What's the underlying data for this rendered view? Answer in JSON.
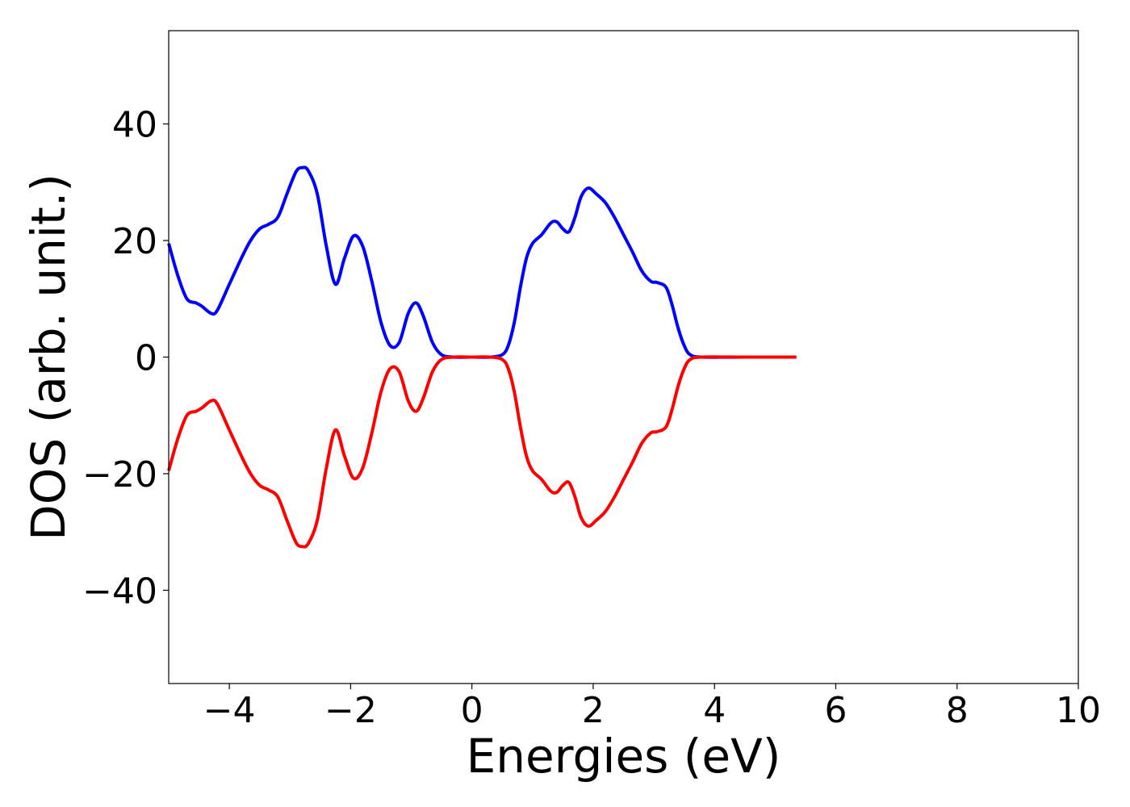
{
  "chart_data": {
    "type": "line",
    "title": "",
    "xlabel": "Energies (eV)",
    "ylabel": "DOS (arb. unit.)",
    "xlim": [
      -5,
      10
    ],
    "ylim": [
      -56,
      56
    ],
    "xticks": [
      -4,
      -2,
      0,
      2,
      4,
      6,
      8,
      10
    ],
    "xtick_labels": [
      "−4",
      "−2",
      "0",
      "2",
      "4",
      "6",
      "8",
      "10"
    ],
    "yticks": [
      -40,
      -20,
      0,
      20,
      40
    ],
    "ytick_labels": [
      "−40",
      "−20",
      "0",
      "20",
      "40"
    ],
    "grid": false,
    "legend": false,
    "series": [
      {
        "color": "#0000ff",
        "points": [
          [
            -5.0,
            19.5
          ],
          [
            -4.85,
            14.0
          ],
          [
            -4.7,
            10.0
          ],
          [
            -4.55,
            9.3
          ],
          [
            -4.45,
            8.7
          ],
          [
            -4.3,
            7.5
          ],
          [
            -4.2,
            8.0
          ],
          [
            -4.0,
            12.5
          ],
          [
            -3.8,
            17.0
          ],
          [
            -3.65,
            20.0
          ],
          [
            -3.5,
            22.0
          ],
          [
            -3.35,
            22.8
          ],
          [
            -3.2,
            24.0
          ],
          [
            -3.05,
            28.0
          ],
          [
            -2.9,
            31.8
          ],
          [
            -2.8,
            32.5
          ],
          [
            -2.7,
            32.0
          ],
          [
            -2.55,
            28.0
          ],
          [
            -2.4,
            19.0
          ],
          [
            -2.25,
            12.5
          ],
          [
            -2.1,
            17.0
          ],
          [
            -1.95,
            20.8
          ],
          [
            -1.8,
            19.0
          ],
          [
            -1.65,
            13.0
          ],
          [
            -1.5,
            6.0
          ],
          [
            -1.35,
            2.0
          ],
          [
            -1.2,
            2.5
          ],
          [
            -1.05,
            7.5
          ],
          [
            -0.92,
            9.3
          ],
          [
            -0.8,
            7.0
          ],
          [
            -0.65,
            2.5
          ],
          [
            -0.5,
            0.4
          ],
          [
            -0.3,
            0.0
          ],
          [
            0.0,
            0.0
          ],
          [
            0.3,
            0.0
          ],
          [
            0.5,
            0.4
          ],
          [
            0.6,
            2.0
          ],
          [
            0.7,
            6.0
          ],
          [
            0.8,
            12.0
          ],
          [
            0.9,
            17.0
          ],
          [
            1.0,
            19.5
          ],
          [
            1.15,
            21.0
          ],
          [
            1.3,
            23.0
          ],
          [
            1.4,
            23.2
          ],
          [
            1.5,
            22.0
          ],
          [
            1.6,
            21.5
          ],
          [
            1.7,
            24.0
          ],
          [
            1.8,
            27.5
          ],
          [
            1.92,
            29.0
          ],
          [
            2.05,
            28.0
          ],
          [
            2.2,
            26.5
          ],
          [
            2.35,
            24.0
          ],
          [
            2.5,
            21.0
          ],
          [
            2.65,
            18.0
          ],
          [
            2.8,
            14.8
          ],
          [
            2.95,
            13.0
          ],
          [
            3.05,
            12.8
          ],
          [
            3.2,
            12.0
          ],
          [
            3.3,
            9.0
          ],
          [
            3.4,
            5.0
          ],
          [
            3.5,
            2.0
          ],
          [
            3.6,
            0.4
          ],
          [
            3.8,
            0.0
          ],
          [
            4.5,
            0.0
          ],
          [
            5.35,
            0.0
          ]
        ]
      },
      {
        "color": "#ff0000",
        "points": [
          [
            -5.0,
            -19.5
          ],
          [
            -4.85,
            -14.0
          ],
          [
            -4.7,
            -10.0
          ],
          [
            -4.55,
            -9.3
          ],
          [
            -4.45,
            -8.7
          ],
          [
            -4.3,
            -7.5
          ],
          [
            -4.2,
            -8.0
          ],
          [
            -4.0,
            -12.5
          ],
          [
            -3.8,
            -17.0
          ],
          [
            -3.65,
            -20.0
          ],
          [
            -3.5,
            -22.0
          ],
          [
            -3.35,
            -22.8
          ],
          [
            -3.2,
            -24.0
          ],
          [
            -3.05,
            -28.0
          ],
          [
            -2.9,
            -31.8
          ],
          [
            -2.8,
            -32.5
          ],
          [
            -2.7,
            -32.0
          ],
          [
            -2.55,
            -28.0
          ],
          [
            -2.4,
            -19.0
          ],
          [
            -2.25,
            -12.5
          ],
          [
            -2.1,
            -17.0
          ],
          [
            -1.95,
            -20.8
          ],
          [
            -1.8,
            -19.0
          ],
          [
            -1.65,
            -13.0
          ],
          [
            -1.5,
            -6.0
          ],
          [
            -1.35,
            -2.0
          ],
          [
            -1.2,
            -2.5
          ],
          [
            -1.05,
            -7.5
          ],
          [
            -0.92,
            -9.3
          ],
          [
            -0.8,
            -7.0
          ],
          [
            -0.65,
            -2.5
          ],
          [
            -0.5,
            -0.4
          ],
          [
            -0.3,
            0.0
          ],
          [
            0.0,
            0.0
          ],
          [
            0.3,
            0.0
          ],
          [
            0.5,
            -0.4
          ],
          [
            0.6,
            -2.0
          ],
          [
            0.7,
            -6.0
          ],
          [
            0.8,
            -12.0
          ],
          [
            0.9,
            -17.0
          ],
          [
            1.0,
            -19.5
          ],
          [
            1.15,
            -21.0
          ],
          [
            1.3,
            -23.0
          ],
          [
            1.4,
            -23.2
          ],
          [
            1.5,
            -22.0
          ],
          [
            1.6,
            -21.5
          ],
          [
            1.7,
            -24.0
          ],
          [
            1.8,
            -27.5
          ],
          [
            1.92,
            -29.0
          ],
          [
            2.05,
            -28.0
          ],
          [
            2.2,
            -26.5
          ],
          [
            2.35,
            -24.0
          ],
          [
            2.5,
            -21.0
          ],
          [
            2.65,
            -18.0
          ],
          [
            2.8,
            -14.8
          ],
          [
            2.95,
            -13.0
          ],
          [
            3.05,
            -12.8
          ],
          [
            3.2,
            -12.0
          ],
          [
            3.3,
            -9.0
          ],
          [
            3.4,
            -5.0
          ],
          [
            3.5,
            -2.0
          ],
          [
            3.6,
            -0.4
          ],
          [
            3.8,
            0.0
          ],
          [
            4.5,
            0.0
          ],
          [
            5.35,
            0.0
          ]
        ]
      }
    ]
  }
}
